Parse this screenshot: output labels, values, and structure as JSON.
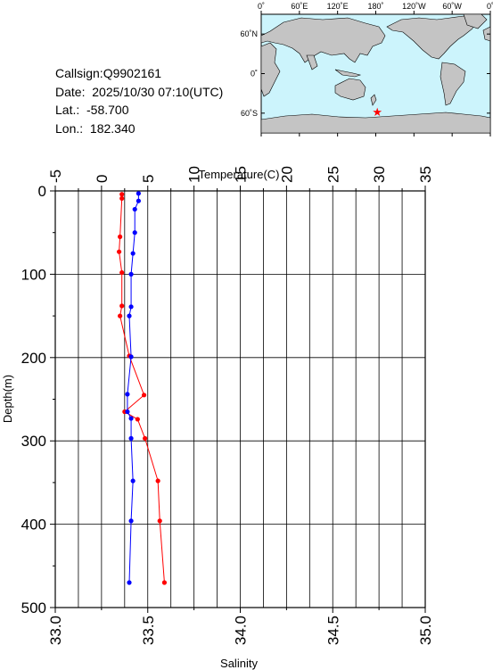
{
  "station": {
    "callsign": "Callsign:Q9902161",
    "date": "Date:  2025/10/30 07:10(UTC)",
    "lat": "Lat.:  -58.700",
    "lon": "Lon.:  182.340"
  },
  "map": {
    "top_labels": [
      "0˚",
      "60˚E",
      "120˚E",
      "180˚",
      "120˚W",
      "60˚W",
      "0˚"
    ],
    "left_labels": [
      "60˚N",
      "0˚",
      "60˚S"
    ],
    "ocean_color": "#ccf4fc",
    "land_color": "#c4c4c4",
    "marker_symbol": "★",
    "marker_color": "#ff0000",
    "marker_position": {
      "lon_east": 182.34,
      "lat": -58.7
    }
  },
  "chart_data": {
    "type": "line",
    "x_top": {
      "label": "Temperature(C)",
      "range": [
        -5,
        35
      ],
      "ticks": [
        "-5",
        "0",
        "5",
        "10",
        "15",
        "20",
        "25",
        "30",
        "35"
      ]
    },
    "x_bottom": {
      "label": "Salinity",
      "range": [
        33.0,
        35.0
      ],
      "ticks": [
        "33.0",
        "33.5",
        "34.0",
        "34.5",
        "35.0"
      ]
    },
    "y": {
      "label": "Depth(m)",
      "range": [
        0,
        500
      ],
      "ticks": [
        "0",
        "100",
        "200",
        "300",
        "400",
        "500"
      ],
      "inverted": true
    },
    "grid": true,
    "series": [
      {
        "axis": "top",
        "color": "#ff0000",
        "points": [
          [
            2.2,
            4
          ],
          [
            2.2,
            9
          ],
          [
            2.0,
            55
          ],
          [
            1.9,
            73
          ],
          [
            2.2,
            98
          ],
          [
            2.2,
            138
          ],
          [
            2.0,
            150
          ],
          [
            3.0,
            198
          ],
          [
            4.6,
            245
          ],
          [
            2.5,
            265
          ],
          [
            3.9,
            274
          ],
          [
            4.7,
            297
          ],
          [
            6.1,
            348
          ],
          [
            6.3,
            396
          ],
          [
            6.8,
            470
          ]
        ]
      },
      {
        "axis": "bottom",
        "color": "#0000ff",
        "points": [
          [
            33.45,
            3
          ],
          [
            33.45,
            12
          ],
          [
            33.43,
            22
          ],
          [
            33.43,
            50
          ],
          [
            33.42,
            75
          ],
          [
            33.41,
            100
          ],
          [
            33.41,
            139
          ],
          [
            33.4,
            150
          ],
          [
            33.41,
            199
          ],
          [
            33.39,
            244
          ],
          [
            33.39,
            265
          ],
          [
            33.41,
            273
          ],
          [
            33.41,
            297
          ],
          [
            33.42,
            348
          ],
          [
            33.41,
            396
          ],
          [
            33.4,
            470
          ]
        ]
      }
    ]
  }
}
